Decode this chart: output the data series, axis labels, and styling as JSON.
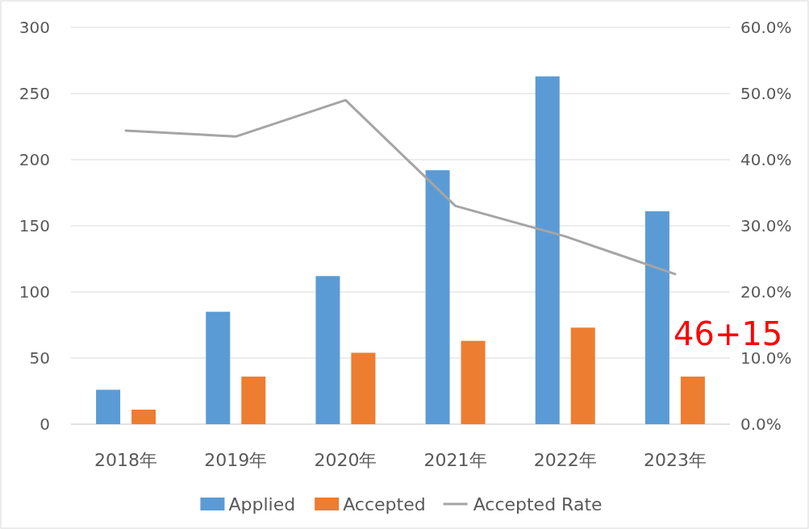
{
  "chart_data": {
    "type": "bar",
    "categories": [
      "2018年",
      "2019年",
      "2020年",
      "2021年",
      "2022年",
      "2023年"
    ],
    "series": [
      {
        "name": "Applied",
        "color": "#5b9bd5",
        "values": [
          26,
          85,
          112,
          192,
          263,
          161
        ]
      },
      {
        "name": "Accepted",
        "color": "#ed7d31",
        "values": [
          11,
          36,
          54,
          63,
          73,
          36
        ]
      },
      {
        "name": "Accepted Rate",
        "type": "line",
        "axis": "y2",
        "color": "#a5a5a5",
        "values": [
          44.4,
          43.5,
          49.0,
          33.0,
          28.4,
          22.7
        ]
      }
    ],
    "ylim": [
      0,
      300
    ],
    "yticks": [
      0,
      50,
      100,
      150,
      200,
      250,
      300
    ],
    "y2lim": [
      0,
      60
    ],
    "y2ticks": [
      {
        "value": 0,
        "label": "0.0%"
      },
      {
        "value": 10,
        "label": "10.0%"
      },
      {
        "value": 20,
        "label": "20.0%"
      },
      {
        "value": 30,
        "label": "30.0%"
      },
      {
        "value": 40,
        "label": "40.0%"
      },
      {
        "value": 50,
        "label": "50.0%"
      },
      {
        "value": 60,
        "label": "60.0%"
      }
    ],
    "grid": "y",
    "legend": "bottom",
    "annotations": [
      "46+15"
    ]
  }
}
